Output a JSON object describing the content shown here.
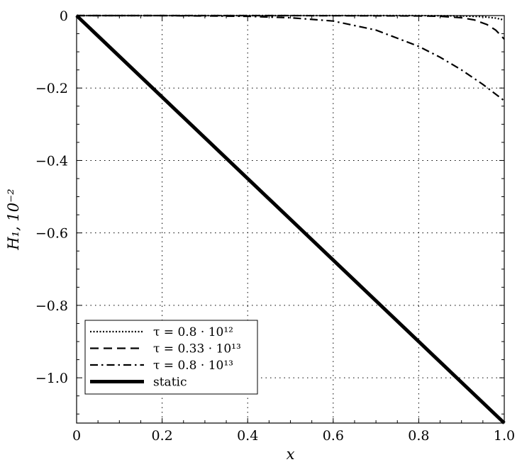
{
  "chart_data": {
    "type": "line",
    "xlabel": "x",
    "ylabel": "H₁, 10⁻²",
    "xlim": [
      0,
      1.0
    ],
    "ylim": [
      -1.125,
      0
    ],
    "grid": true,
    "legend_position": "bottom-left",
    "x_ticks": [
      "0",
      "0.2",
      "0.4",
      "0.6",
      "0.8",
      "1.0"
    ],
    "y_ticks": [
      "0",
      "−0.2",
      "−0.4",
      "−0.6",
      "−0.8",
      "−1.0"
    ],
    "series": [
      {
        "name": "τ = 0.8 · 10¹²",
        "style": "dotted",
        "width": "thin",
        "x": [
          0,
          0.5,
          0.8,
          0.9,
          0.95,
          0.98,
          1.0
        ],
        "y": [
          0,
          0,
          0,
          -0.001,
          -0.003,
          -0.007,
          -0.012
        ]
      },
      {
        "name": "τ = 0.33 · 10¹³",
        "style": "dashed",
        "width": "thin",
        "x": [
          0,
          0.5,
          0.8,
          0.85,
          0.9,
          0.93,
          0.96,
          0.98,
          1.0
        ],
        "y": [
          0,
          0,
          -0.001,
          -0.002,
          -0.006,
          -0.012,
          -0.025,
          -0.04,
          -0.065
        ]
      },
      {
        "name": "τ = 0.8 · 10¹³",
        "style": "dashdot",
        "width": "thin",
        "x": [
          0,
          0.2,
          0.3,
          0.4,
          0.5,
          0.6,
          0.7,
          0.8,
          0.85,
          0.9,
          0.95,
          1.0
        ],
        "y": [
          0,
          0,
          -0.001,
          -0.002,
          -0.006,
          -0.015,
          -0.04,
          -0.085,
          -0.115,
          -0.15,
          -0.19,
          -0.235
        ]
      },
      {
        "name": "static",
        "style": "solid",
        "width": "thick",
        "x": [
          0,
          1.0
        ],
        "y": [
          0,
          -1.125
        ]
      }
    ]
  }
}
